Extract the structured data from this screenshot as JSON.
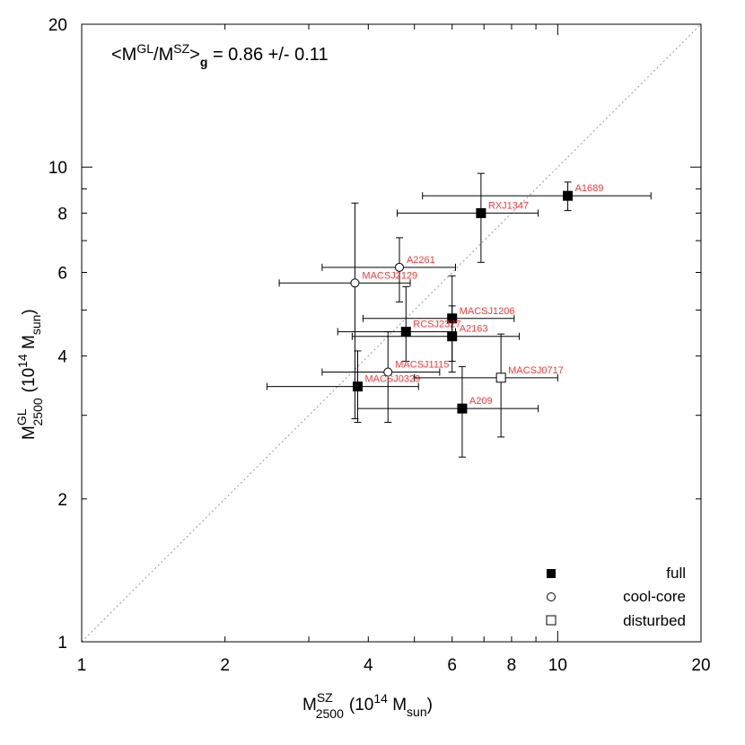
{
  "chart_data": {
    "type": "scatter",
    "xscale": "log",
    "yscale": "log",
    "xlim": [
      1,
      20
    ],
    "ylim": [
      1,
      20
    ],
    "grid": false,
    "legend_position": "bottom-right",
    "x_ticks": [
      {
        "value": 1,
        "label": "1"
      },
      {
        "value": 2,
        "label": "2"
      },
      {
        "value": 4,
        "label": "4"
      },
      {
        "value": 6,
        "label": "6"
      },
      {
        "value": 8,
        "label": "8"
      },
      {
        "value": 10,
        "label": "10"
      },
      {
        "value": 20,
        "label": "20"
      }
    ],
    "y_ticks": [
      {
        "value": 1,
        "label": "1"
      },
      {
        "value": 2,
        "label": "2"
      },
      {
        "value": 4,
        "label": "4"
      },
      {
        "value": 6,
        "label": "6"
      },
      {
        "value": 8,
        "label": "8"
      },
      {
        "value": 10,
        "label": "10"
      },
      {
        "value": 20,
        "label": "20"
      }
    ],
    "xlabel": {
      "main": "M",
      "sup": "SZ",
      "sub": "2500",
      "unit_open": "(10",
      "unit_exp": "14",
      "unit_mid": " M",
      "unit_sub": "sun",
      "unit_close": ")"
    },
    "ylabel": {
      "main": "M",
      "sup": "GL",
      "sub": "2500",
      "unit_open": "(10",
      "unit_exp": "14",
      "unit_mid": " M",
      "unit_sub": "sun",
      "unit_close": ")"
    },
    "annotation": {
      "prefix": "<M",
      "sup1": "GL",
      "mid": "/M",
      "sup2": "SZ",
      "close": ">",
      "sub": "g",
      "value": " = 0.86 +/- 0.11"
    },
    "reference_line": {
      "type": "one-to-one",
      "style": "dotted",
      "color": "#999999"
    },
    "series": [
      {
        "name": "full",
        "marker": "filled-square"
      },
      {
        "name": "cool-core",
        "marker": "open-circle"
      },
      {
        "name": "disturbed",
        "marker": "open-square"
      }
    ],
    "points": [
      {
        "label": "A1689",
        "x": 10.5,
        "xerr": [
          5.2,
          15.7
        ],
        "y": 8.7,
        "yerr": [
          8.1,
          9.3
        ],
        "markers": [
          "filled-square"
        ]
      },
      {
        "label": "RXJ1347",
        "x": 6.9,
        "xerr": [
          4.6,
          9.1
        ],
        "y": 8.0,
        "yerr": [
          6.3,
          9.7
        ],
        "markers": [
          "filled-square"
        ]
      },
      {
        "label": "A2261",
        "x": 4.65,
        "xerr": [
          3.2,
          6.1
        ],
        "y": 6.15,
        "yerr": [
          5.2,
          7.1
        ],
        "markers": [
          "open-circle"
        ]
      },
      {
        "label": "MACSJ2129",
        "x": 3.75,
        "xerr": [
          2.6,
          4.9
        ],
        "y": 5.7,
        "yerr": [
          2.95,
          8.4
        ],
        "markers": [
          "open-circle"
        ]
      },
      {
        "label": "MACSJ1206",
        "x": 6.0,
        "xerr": [
          3.9,
          8.1
        ],
        "y": 4.8,
        "yerr": [
          3.7,
          5.9
        ],
        "markers": [
          "filled-square"
        ]
      },
      {
        "label": "RCSJ2327",
        "x": 4.8,
        "xerr": [
          3.45,
          6.1
        ],
        "y": 4.5,
        "yerr": [
          3.9,
          5.6
        ],
        "markers": [
          "filled-square"
        ]
      },
      {
        "label": "A2163",
        "x": 6.0,
        "xerr": [
          3.7,
          8.3
        ],
        "y": 4.4,
        "yerr": [
          3.9,
          5.1
        ],
        "markers": [
          "filled-square"
        ]
      },
      {
        "label": "MACSJ1115",
        "x": 4.4,
        "xerr": [
          3.2,
          5.65
        ],
        "y": 3.7,
        "yerr": [
          2.9,
          4.5
        ],
        "markers": [
          "open-circle"
        ]
      },
      {
        "label": "MACSJ0329",
        "x": 3.8,
        "xerr": [
          2.45,
          5.1
        ],
        "y": 3.45,
        "yerr": [
          2.9,
          4.1
        ],
        "markers": [
          "filled-square"
        ]
      },
      {
        "label": "MACSJ0717",
        "x": 7.6,
        "xerr": [
          5.0,
          10.0
        ],
        "y": 3.6,
        "yerr": [
          2.7,
          4.45
        ],
        "markers": [
          "open-square"
        ]
      },
      {
        "label": "A209",
        "x": 6.3,
        "xerr": [
          3.8,
          9.1
        ],
        "y": 3.1,
        "yerr": [
          2.45,
          3.8
        ],
        "markers": [
          "filled-square"
        ]
      }
    ]
  }
}
